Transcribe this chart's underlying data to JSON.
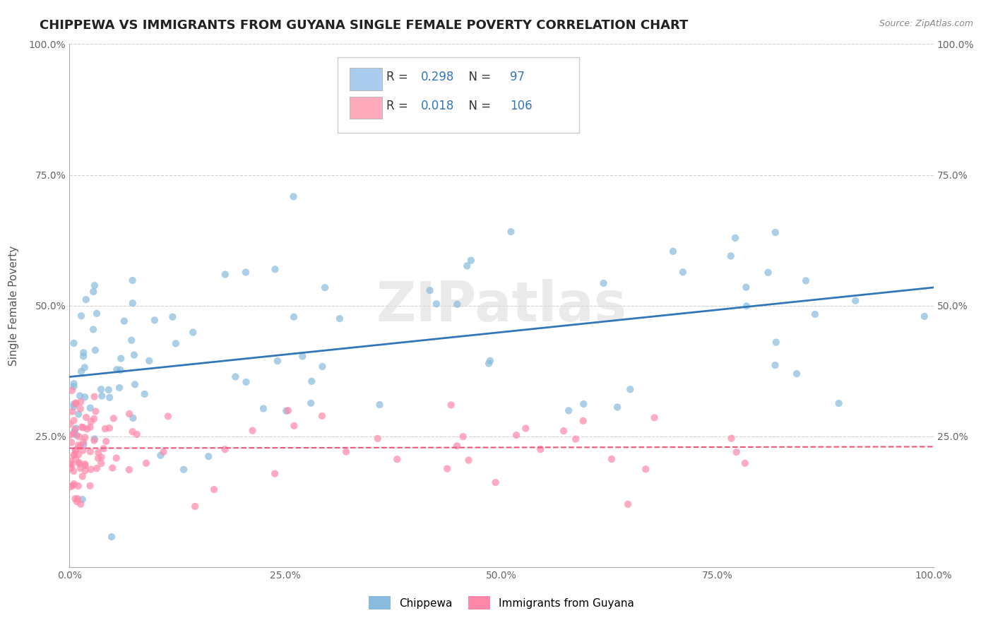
{
  "title": "CHIPPEWA VS IMMIGRANTS FROM GUYANA SINGLE FEMALE POVERTY CORRELATION CHART",
  "source_text": "Source: ZipAtlas.com",
  "ylabel": "Single Female Poverty",
  "watermark": "ZIPatlas",
  "series": [
    {
      "name": "Chippewa",
      "color": "#aaccee",
      "dot_color": "#88bbdd",
      "R": 0.298,
      "N": 97,
      "line_style": "solid",
      "line_color": "#3377bb"
    },
    {
      "name": "Immigrants from Guyana",
      "color": "#ffaabb",
      "dot_color": "#ff88aa",
      "R": 0.018,
      "N": 106,
      "line_style": "dashed",
      "line_color": "#ee5577"
    }
  ],
  "xlim": [
    0,
    100
  ],
  "ylim": [
    0,
    100
  ],
  "x_ticks": [
    0,
    25,
    50,
    75,
    100
  ],
  "x_tick_labels": [
    "0.0%",
    "25.0%",
    "50.0%",
    "75.0%",
    "100.0%"
  ],
  "y_ticks": [
    25,
    50,
    75,
    100
  ],
  "y_tick_labels": [
    "25.0%",
    "50.0%",
    "75.0%",
    "100.0%"
  ],
  "grid_color": "#cccccc",
  "background_color": "#ffffff",
  "plot_bg_color": "#ffffff",
  "title_fontsize": 13,
  "axis_label_fontsize": 11,
  "tick_fontsize": 10,
  "legend_color": "#3377bb"
}
